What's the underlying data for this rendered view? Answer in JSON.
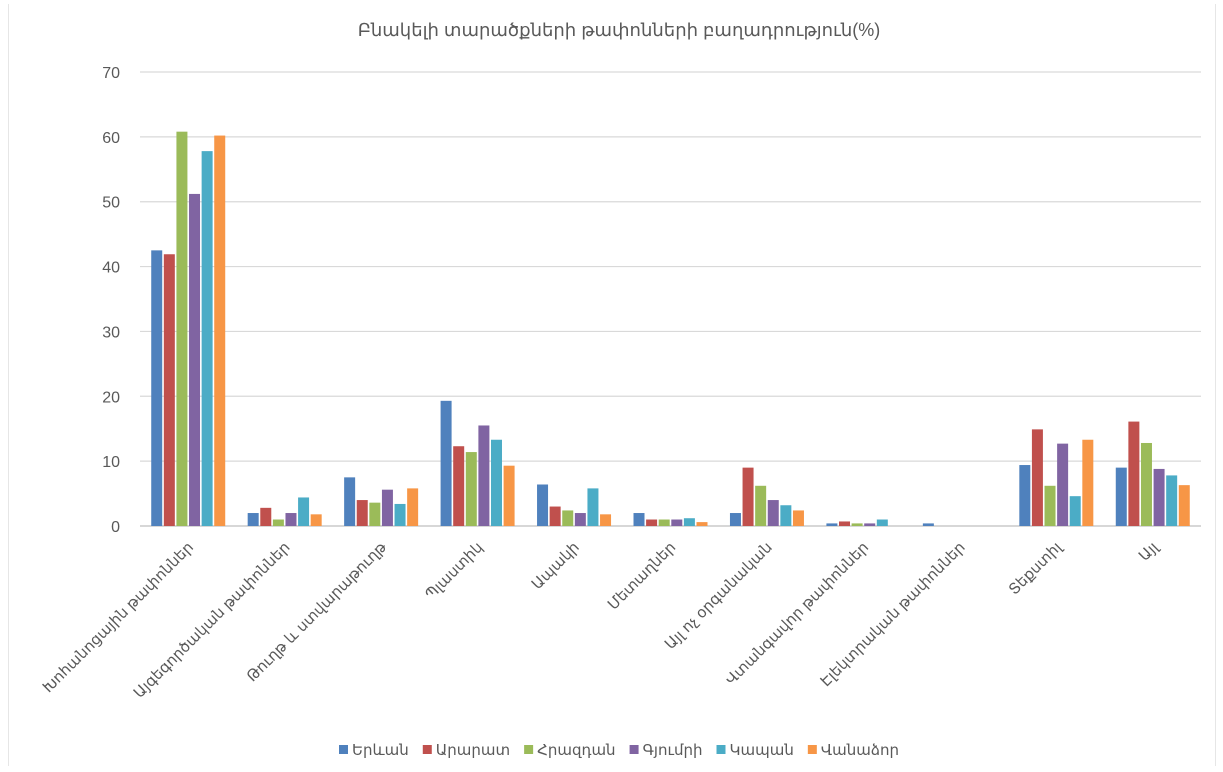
{
  "chart_data": {
    "type": "bar",
    "title": "Բնակելի տարածքների թափոնների բաղադրություն(%)",
    "xlabel": "",
    "ylabel": "",
    "ylim": [
      0,
      70
    ],
    "yticks": [
      0,
      10,
      20,
      30,
      40,
      50,
      60,
      70
    ],
    "grid": true,
    "legend_position": "bottom",
    "categories": [
      "Խոհանոցային թափոններ",
      "Այգեգործական թափոններ",
      "Թուղթ և ստվարաթուղթ",
      "Պլաստիկ",
      "Ապակի",
      "Մետաղներ",
      "Այլ ոչ օրգանական",
      "Վտանգավոր թափոններ",
      "Էլեկտրական թափոններ",
      "Տեքստիլ",
      "Այլ"
    ],
    "series": [
      {
        "name": "Երևան",
        "color": "#4F81BD",
        "values": [
          42.5,
          2.0,
          7.5,
          19.3,
          6.4,
          2.0,
          2.0,
          0.4,
          0.4,
          9.4,
          9.0
        ]
      },
      {
        "name": "Արարատ",
        "color": "#C0504D",
        "values": [
          41.9,
          2.8,
          4.0,
          12.3,
          3.0,
          1.0,
          9.0,
          0.7,
          0.0,
          14.9,
          16.1
        ]
      },
      {
        "name": "Հրազդան",
        "color": "#9BBB59",
        "values": [
          60.8,
          1.0,
          3.6,
          11.4,
          2.4,
          1.0,
          6.2,
          0.4,
          0.0,
          6.2,
          12.8
        ]
      },
      {
        "name": "Գյումրի",
        "color": "#8064A2",
        "values": [
          51.2,
          2.0,
          5.6,
          15.5,
          2.0,
          1.0,
          4.0,
          0.4,
          0.0,
          12.7,
          8.8
        ]
      },
      {
        "name": "Կապան",
        "color": "#4BACC6",
        "values": [
          57.8,
          4.4,
          3.4,
          13.3,
          5.8,
          1.2,
          3.2,
          1.0,
          0.0,
          4.6,
          7.8
        ]
      },
      {
        "name": "Վանաձոր",
        "color": "#F79646",
        "values": [
          60.2,
          1.8,
          5.8,
          9.3,
          1.8,
          0.6,
          2.4,
          0.0,
          0.0,
          13.3,
          6.3
        ]
      }
    ]
  }
}
